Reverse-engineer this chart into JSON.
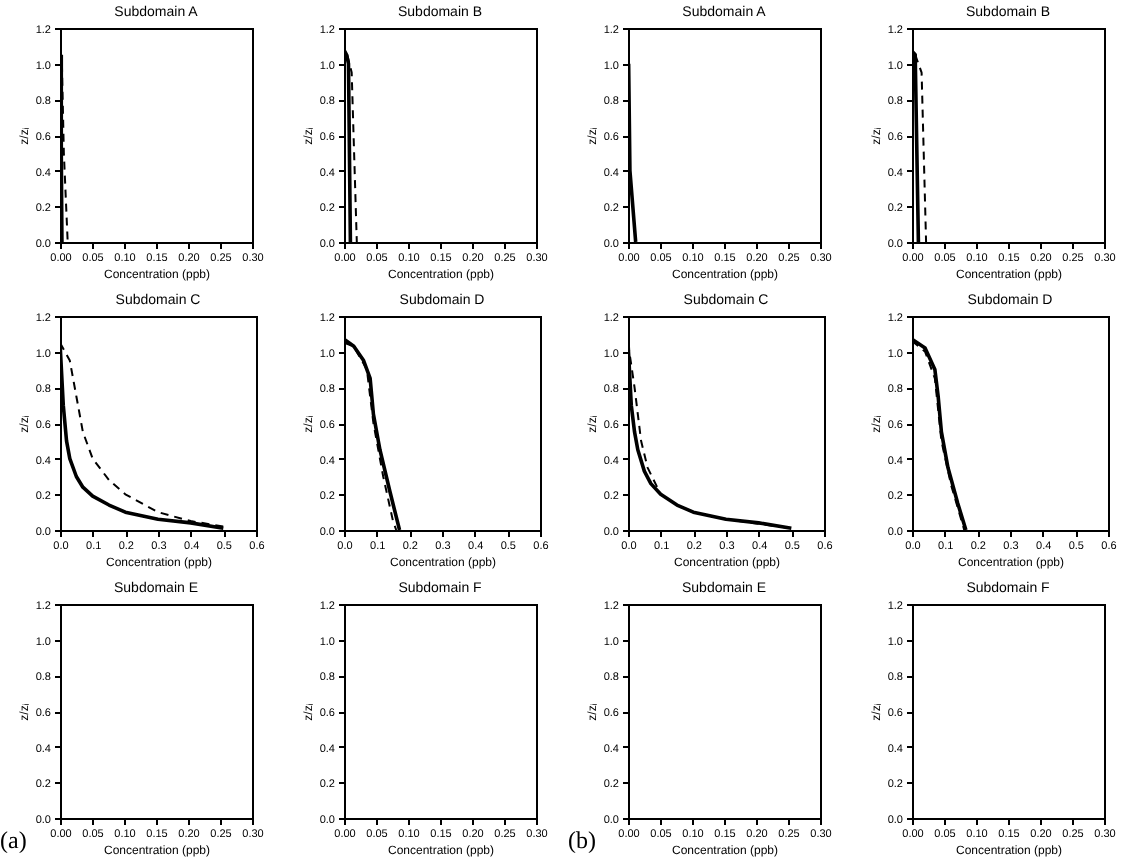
{
  "chart_data": [
    {
      "type": "line",
      "title": "Subdomain A",
      "xlabel": "Concentration (ppb)",
      "ylabel": "z/zᵢ",
      "xlim": [
        0,
        0.3
      ],
      "ylim": [
        0,
        1.2
      ],
      "xticks": [
        {
          "value": 0,
          "label": "0.00"
        },
        {
          "value": 0.05,
          "label": "0.05"
        },
        {
          "value": 0.1,
          "label": "0.10"
        },
        {
          "value": 0.15,
          "label": "0.15"
        },
        {
          "value": 0.2,
          "label": "0.20"
        },
        {
          "value": 0.25,
          "label": "0.25"
        },
        {
          "value": 0.3,
          "label": "0.30"
        }
      ],
      "yticks": [
        {
          "value": 0,
          "label": "0.0"
        },
        {
          "value": 0.2,
          "label": "0.2"
        },
        {
          "value": 0.4,
          "label": "0.4"
        },
        {
          "value": 0.6,
          "label": "0.6"
        },
        {
          "value": 0.8,
          "label": "0.8"
        },
        {
          "value": 1,
          "label": "1.0"
        },
        {
          "value": 1.2,
          "label": "1.2"
        }
      ],
      "series": [
        {
          "color": "#000000",
          "line_style": "solid",
          "x": [
            0.002,
            0.002,
            0.003
          ],
          "values": [
            1.05,
            0.5,
            0
          ]
        },
        {
          "color": "#000000",
          "line_style": "dashed",
          "x": [
            0.003,
            0.006,
            0.012
          ],
          "values": [
            1.0,
            0.5,
            0
          ]
        }
      ]
    },
    {
      "type": "line",
      "title": "Subdomain B",
      "xlabel": "Concentration (ppb)",
      "ylabel": "z/zᵢ",
      "xlim": [
        0,
        0.3
      ],
      "ylim": [
        0,
        1.2
      ],
      "xticks": [
        {
          "value": 0,
          "label": "0.00"
        },
        {
          "value": 0.05,
          "label": "0.05"
        },
        {
          "value": 0.1,
          "label": "0.10"
        },
        {
          "value": 0.15,
          "label": "0.15"
        },
        {
          "value": 0.2,
          "label": "0.20"
        },
        {
          "value": 0.25,
          "label": "0.25"
        },
        {
          "value": 0.3,
          "label": "0.30"
        }
      ],
      "yticks": [
        {
          "value": 0,
          "label": "0.0"
        },
        {
          "value": 0.2,
          "label": "0.2"
        },
        {
          "value": 0.4,
          "label": "0.4"
        },
        {
          "value": 0.6,
          "label": "0.6"
        },
        {
          "value": 0.8,
          "label": "0.8"
        },
        {
          "value": 1,
          "label": "1.0"
        },
        {
          "value": 1.2,
          "label": "1.2"
        }
      ],
      "series": [
        {
          "color": "#000000",
          "line_style": "solid",
          "x": [
            0.001,
            0.004,
            0.007,
            0.01
          ],
          "values": [
            1.07,
            1.05,
            1.0,
            0
          ]
        },
        {
          "color": "#000000",
          "line_style": "dashed",
          "x": [
            0.005,
            0.012,
            0.02
          ],
          "values": [
            1.05,
            0.95,
            0
          ]
        }
      ]
    },
    {
      "type": "line",
      "title": "Subdomain C",
      "xlabel": "Concentration (ppb)",
      "ylabel": "z/zᵢ",
      "xlim": [
        0,
        0.6
      ],
      "ylim": [
        0,
        1.2
      ],
      "xticks": [
        {
          "value": 0,
          "label": "0.0"
        },
        {
          "value": 0.1,
          "label": "0.1"
        },
        {
          "value": 0.2,
          "label": "0.2"
        },
        {
          "value": 0.3,
          "label": "0.3"
        },
        {
          "value": 0.4,
          "label": "0.4"
        },
        {
          "value": 0.5,
          "label": "0.5"
        },
        {
          "value": 0.6,
          "label": "0.6"
        }
      ],
      "yticks": [
        {
          "value": 0,
          "label": "0.0"
        },
        {
          "value": 0.2,
          "label": "0.2"
        },
        {
          "value": 0.4,
          "label": "0.4"
        },
        {
          "value": 0.6,
          "label": "0.6"
        },
        {
          "value": 0.8,
          "label": "0.8"
        },
        {
          "value": 1,
          "label": "1.0"
        },
        {
          "value": 1.2,
          "label": "1.2"
        }
      ],
      "series": [
        {
          "color": "#000000",
          "line_style": "solid",
          "x": [
            0,
            0.01,
            0.02,
            0.03,
            0.05,
            0.07,
            0.1,
            0.15,
            0.2,
            0.3,
            0.4,
            0.5
          ],
          "values": [
            1.05,
            0.7,
            0.5,
            0.4,
            0.3,
            0.24,
            0.19,
            0.14,
            0.1,
            0.06,
            0.04,
            0.01
          ]
        },
        {
          "color": "#000000",
          "line_style": "dashed",
          "x": [
            0,
            0.03,
            0.05,
            0.07,
            0.1,
            0.15,
            0.2,
            0.3,
            0.4,
            0.5
          ],
          "values": [
            1.05,
            0.95,
            0.75,
            0.55,
            0.4,
            0.28,
            0.2,
            0.1,
            0.05,
            0.02
          ]
        }
      ]
    },
    {
      "type": "line",
      "title": "Subdomain D",
      "xlabel": "Concentration (ppb)",
      "ylabel": "z/zᵢ",
      "xlim": [
        0,
        0.6
      ],
      "ylim": [
        0,
        1.2
      ],
      "xticks": [
        {
          "value": 0,
          "label": "0.0"
        },
        {
          "value": 0.1,
          "label": "0.1"
        },
        {
          "value": 0.2,
          "label": "0.2"
        },
        {
          "value": 0.3,
          "label": "0.3"
        },
        {
          "value": 0.4,
          "label": "0.4"
        },
        {
          "value": 0.5,
          "label": "0.5"
        },
        {
          "value": 0.6,
          "label": "0.6"
        }
      ],
      "yticks": [
        {
          "value": 0,
          "label": "0.0"
        },
        {
          "value": 0.2,
          "label": "0.2"
        },
        {
          "value": 0.4,
          "label": "0.4"
        },
        {
          "value": 0.6,
          "label": "0.6"
        },
        {
          "value": 0.8,
          "label": "0.8"
        },
        {
          "value": 1,
          "label": "1.0"
        },
        {
          "value": 1.2,
          "label": "1.2"
        }
      ],
      "series": [
        {
          "color": "#000000",
          "line_style": "solid",
          "x": [
            0,
            0.03,
            0.06,
            0.08,
            0.09,
            0.11,
            0.14,
            0.17
          ],
          "values": [
            1.07,
            1.03,
            0.95,
            0.85,
            0.65,
            0.45,
            0.22,
            0
          ]
        },
        {
          "color": "#000000",
          "line_style": "dashed",
          "x": [
            0,
            0.03,
            0.07,
            0.09,
            0.12,
            0.15,
            0.16
          ],
          "values": [
            1.05,
            1.03,
            0.9,
            0.6,
            0.3,
            0.05,
            0
          ]
        }
      ]
    },
    {
      "type": "line",
      "title": "Subdomain E",
      "xlabel": "Concentration (ppb)",
      "ylabel": "z/zᵢ",
      "xlim": [
        0,
        0.3
      ],
      "ylim": [
        0,
        1.2
      ],
      "xticks": [
        {
          "value": 0,
          "label": "0.00"
        },
        {
          "value": 0.05,
          "label": "0.05"
        },
        {
          "value": 0.1,
          "label": "0.10"
        },
        {
          "value": 0.15,
          "label": "0.15"
        },
        {
          "value": 0.2,
          "label": "0.20"
        },
        {
          "value": 0.25,
          "label": "0.25"
        },
        {
          "value": 0.3,
          "label": "0.30"
        }
      ],
      "yticks": [
        {
          "value": 0,
          "label": "0.0"
        },
        {
          "value": 0.2,
          "label": "0.2"
        },
        {
          "value": 0.4,
          "label": "0.4"
        },
        {
          "value": 0.6,
          "label": "0.6"
        },
        {
          "value": 0.8,
          "label": "0.8"
        },
        {
          "value": 1,
          "label": "1.0"
        },
        {
          "value": 1.2,
          "label": "1.2"
        }
      ],
      "annotations": [
        "(a)"
      ]
    },
    {
      "type": "line",
      "title": "Subdomain F",
      "xlabel": "Concentration (ppb)",
      "ylabel": "z/zᵢ",
      "xlim": [
        0,
        0.3
      ],
      "ylim": [
        0,
        1.2
      ],
      "xticks": [
        {
          "value": 0,
          "label": "0.00"
        },
        {
          "value": 0.05,
          "label": "0.05"
        },
        {
          "value": 0.1,
          "label": "0.10"
        },
        {
          "value": 0.15,
          "label": "0.15"
        },
        {
          "value": 0.2,
          "label": "0.20"
        },
        {
          "value": 0.25,
          "label": "0.25"
        },
        {
          "value": 0.3,
          "label": "0.30"
        }
      ],
      "yticks": [
        {
          "value": 0,
          "label": "0.0"
        },
        {
          "value": 0.2,
          "label": "0.2"
        },
        {
          "value": 0.4,
          "label": "0.4"
        },
        {
          "value": 0.6,
          "label": "0.6"
        },
        {
          "value": 0.8,
          "label": "0.8"
        },
        {
          "value": 1,
          "label": "1.0"
        },
        {
          "value": 1.2,
          "label": "1.2"
        }
      ]
    },
    {
      "type": "line",
      "title": "Subdomain A",
      "xlabel": "Concentration (ppb)",
      "ylabel": "z/zᵢ",
      "xlim": [
        0,
        0.3
      ],
      "ylim": [
        0,
        1.2
      ],
      "xticks": [
        {
          "value": 0,
          "label": "0.00"
        },
        {
          "value": 0.05,
          "label": "0.05"
        },
        {
          "value": 0.1,
          "label": "0.10"
        },
        {
          "value": 0.15,
          "label": "0.15"
        },
        {
          "value": 0.2,
          "label": "0.20"
        },
        {
          "value": 0.25,
          "label": "0.25"
        },
        {
          "value": 0.3,
          "label": "0.30"
        }
      ],
      "yticks": [
        {
          "value": 0,
          "label": "0.0"
        },
        {
          "value": 0.2,
          "label": "0.2"
        },
        {
          "value": 0.4,
          "label": "0.4"
        },
        {
          "value": 0.6,
          "label": "0.6"
        },
        {
          "value": 0.8,
          "label": "0.8"
        },
        {
          "value": 1,
          "label": "1.0"
        },
        {
          "value": 1.2,
          "label": "1.2"
        }
      ],
      "series": [
        {
          "color": "#000000",
          "line_style": "solid",
          "x": [
            0.001,
            0.003,
            0.012
          ],
          "values": [
            1.0,
            0.4,
            0
          ]
        }
      ]
    },
    {
      "type": "line",
      "title": "Subdomain B",
      "xlabel": "Concentration (ppb)",
      "ylabel": "z/zᵢ",
      "xlim": [
        0,
        0.3
      ],
      "ylim": [
        0,
        1.2
      ],
      "xticks": [
        {
          "value": 0,
          "label": "0.00"
        },
        {
          "value": 0.05,
          "label": "0.05"
        },
        {
          "value": 0.1,
          "label": "0.10"
        },
        {
          "value": 0.15,
          "label": "0.15"
        },
        {
          "value": 0.2,
          "label": "0.20"
        },
        {
          "value": 0.25,
          "label": "0.25"
        },
        {
          "value": 0.3,
          "label": "0.30"
        }
      ],
      "yticks": [
        {
          "value": 0,
          "label": "0.0"
        },
        {
          "value": 0.2,
          "label": "0.2"
        },
        {
          "value": 0.4,
          "label": "0.4"
        },
        {
          "value": 0.6,
          "label": "0.6"
        },
        {
          "value": 0.8,
          "label": "0.8"
        },
        {
          "value": 1,
          "label": "1.0"
        },
        {
          "value": 1.2,
          "label": "1.2"
        }
      ],
      "series": [
        {
          "color": "#000000",
          "line_style": "solid",
          "x": [
            0,
            0.005,
            0.01
          ],
          "values": [
            1.07,
            1.05,
            0
          ]
        },
        {
          "color": "#000000",
          "line_style": "dashed",
          "x": [
            0.005,
            0.015,
            0.022
          ],
          "values": [
            1.05,
            0.95,
            0
          ]
        }
      ]
    },
    {
      "type": "line",
      "title": "Subdomain C",
      "xlabel": "Concentration (ppb)",
      "ylabel": "z/zᵢ",
      "xlim": [
        0,
        0.6
      ],
      "ylim": [
        0,
        1.2
      ],
      "xticks": [
        {
          "value": 0,
          "label": "0.0"
        },
        {
          "value": 0.1,
          "label": "0.1"
        },
        {
          "value": 0.2,
          "label": "0.2"
        },
        {
          "value": 0.3,
          "label": "0.3"
        },
        {
          "value": 0.4,
          "label": "0.4"
        },
        {
          "value": 0.5,
          "label": "0.5"
        },
        {
          "value": 0.6,
          "label": "0.6"
        }
      ],
      "yticks": [
        {
          "value": 0,
          "label": "0.0"
        },
        {
          "value": 0.2,
          "label": "0.2"
        },
        {
          "value": 0.4,
          "label": "0.4"
        },
        {
          "value": 0.6,
          "label": "0.6"
        },
        {
          "value": 0.8,
          "label": "0.8"
        },
        {
          "value": 1,
          "label": "1.0"
        },
        {
          "value": 1.2,
          "label": "1.2"
        }
      ],
      "series": [
        {
          "color": "#000000",
          "line_style": "solid",
          "x": [
            0,
            0.01,
            0.02,
            0.03,
            0.05,
            0.07,
            0.1,
            0.15,
            0.2,
            0.3,
            0.4,
            0.5
          ],
          "values": [
            1.05,
            0.7,
            0.55,
            0.45,
            0.33,
            0.26,
            0.2,
            0.14,
            0.1,
            0.06,
            0.04,
            0.01
          ]
        },
        {
          "color": "#000000",
          "line_style": "dashed",
          "x": [
            0,
            0.02,
            0.04,
            0.06,
            0.1,
            0.15,
            0.2,
            0.3,
            0.5
          ],
          "values": [
            1.05,
            0.8,
            0.5,
            0.35,
            0.2,
            0.14,
            0.1,
            0.06,
            0.01
          ]
        }
      ]
    },
    {
      "type": "line",
      "title": "Subdomain D",
      "xlabel": "Concentration (ppb)",
      "ylabel": "z/zᵢ",
      "xlim": [
        0,
        0.6
      ],
      "ylim": [
        0,
        1.2
      ],
      "xticks": [
        {
          "value": 0,
          "label": "0.0"
        },
        {
          "value": 0.1,
          "label": "0.1"
        },
        {
          "value": 0.2,
          "label": "0.2"
        },
        {
          "value": 0.3,
          "label": "0.3"
        },
        {
          "value": 0.4,
          "label": "0.4"
        },
        {
          "value": 0.5,
          "label": "0.5"
        },
        {
          "value": 0.6,
          "label": "0.6"
        }
      ],
      "yticks": [
        {
          "value": 0,
          "label": "0.0"
        },
        {
          "value": 0.2,
          "label": "0.2"
        },
        {
          "value": 0.4,
          "label": "0.4"
        },
        {
          "value": 0.6,
          "label": "0.6"
        },
        {
          "value": 0.8,
          "label": "0.8"
        },
        {
          "value": 1,
          "label": "1.0"
        },
        {
          "value": 1.2,
          "label": "1.2"
        }
      ],
      "series": [
        {
          "color": "#000000",
          "line_style": "solid",
          "x": [
            0,
            0.04,
            0.07,
            0.08,
            0.09,
            0.11,
            0.14,
            0.165
          ],
          "values": [
            1.07,
            1.02,
            0.9,
            0.75,
            0.55,
            0.35,
            0.15,
            0
          ]
        },
        {
          "color": "#000000",
          "line_style": "dashed",
          "x": [
            0,
            0.04,
            0.07,
            0.09,
            0.12,
            0.16
          ],
          "values": [
            1.06,
            1.0,
            0.85,
            0.5,
            0.25,
            0
          ]
        }
      ]
    },
    {
      "type": "line",
      "title": "Subdomain E",
      "xlabel": "Concentration (ppb)",
      "ylabel": "z/zᵢ",
      "xlim": [
        0,
        0.3
      ],
      "ylim": [
        0,
        1.2
      ],
      "xticks": [
        {
          "value": 0,
          "label": "0.00"
        },
        {
          "value": 0.05,
          "label": "0.05"
        },
        {
          "value": 0.1,
          "label": "0.10"
        },
        {
          "value": 0.15,
          "label": "0.15"
        },
        {
          "value": 0.2,
          "label": "0.20"
        },
        {
          "value": 0.25,
          "label": "0.25"
        },
        {
          "value": 0.3,
          "label": "0.30"
        }
      ],
      "yticks": [
        {
          "value": 0,
          "label": "0.0"
        },
        {
          "value": 0.2,
          "label": "0.2"
        },
        {
          "value": 0.4,
          "label": "0.4"
        },
        {
          "value": 0.6,
          "label": "0.6"
        },
        {
          "value": 0.8,
          "label": "0.8"
        },
        {
          "value": 1,
          "label": "1.0"
        },
        {
          "value": 1.2,
          "label": "1.2"
        }
      ],
      "annotations": [
        "(b)"
      ]
    },
    {
      "type": "line",
      "title": "Subdomain F",
      "xlabel": "Concentration (ppb)",
      "ylabel": "z/zᵢ",
      "xlim": [
        0,
        0.3
      ],
      "ylim": [
        0,
        1.2
      ],
      "xticks": [
        {
          "value": 0,
          "label": "0.00"
        },
        {
          "value": 0.05,
          "label": "0.05"
        },
        {
          "value": 0.1,
          "label": "0.10"
        },
        {
          "value": 0.15,
          "label": "0.15"
        },
        {
          "value": 0.2,
          "label": "0.20"
        },
        {
          "value": 0.25,
          "label": "0.25"
        },
        {
          "value": 0.3,
          "label": "0.30"
        }
      ],
      "yticks": [
        {
          "value": 0,
          "label": "0.0"
        },
        {
          "value": 0.2,
          "label": "0.2"
        },
        {
          "value": 0.4,
          "label": "0.4"
        },
        {
          "value": 0.6,
          "label": "0.6"
        },
        {
          "value": 0.8,
          "label": "0.8"
        },
        {
          "value": 1,
          "label": "1.0"
        },
        {
          "value": 1.2,
          "label": "1.2"
        }
      ]
    }
  ]
}
